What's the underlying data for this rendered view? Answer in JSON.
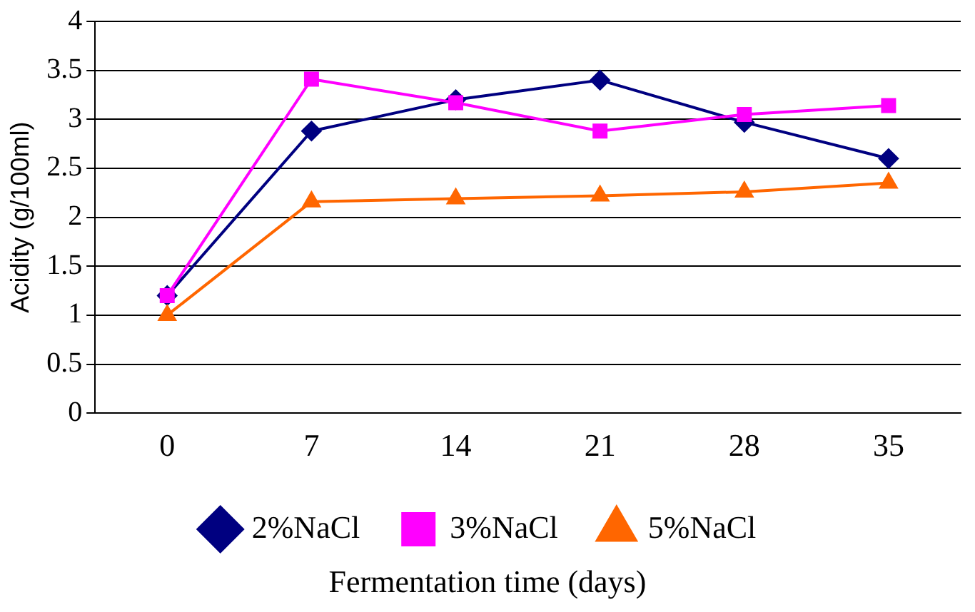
{
  "chart_data": {
    "type": "line",
    "xlabel": "Fermentation time (days)",
    "ylabel": "Acidity (g/100ml)",
    "categories": [
      "0",
      "7",
      "14",
      "21",
      "28",
      "35"
    ],
    "series": [
      {
        "name": "2%NaCl",
        "color": "#000080",
        "marker": "diamond",
        "values": [
          1.2,
          2.88,
          3.2,
          3.4,
          2.97,
          2.6
        ]
      },
      {
        "name": "3%NaCl",
        "color": "#ff00ff",
        "marker": "square",
        "values": [
          1.2,
          3.41,
          3.17,
          2.88,
          3.05,
          3.14
        ]
      },
      {
        "name": "5%NaCl",
        "color": "#ff6600",
        "marker": "triangle",
        "values": [
          1.0,
          2.16,
          2.19,
          2.22,
          2.26,
          2.35
        ]
      }
    ],
    "ylim": [
      0,
      4
    ],
    "yticks": [
      0,
      0.5,
      1,
      1.5,
      2,
      2.5,
      3,
      3.5,
      4
    ],
    "grid": "y",
    "legend": "bottom",
    "line_style": "solid"
  }
}
